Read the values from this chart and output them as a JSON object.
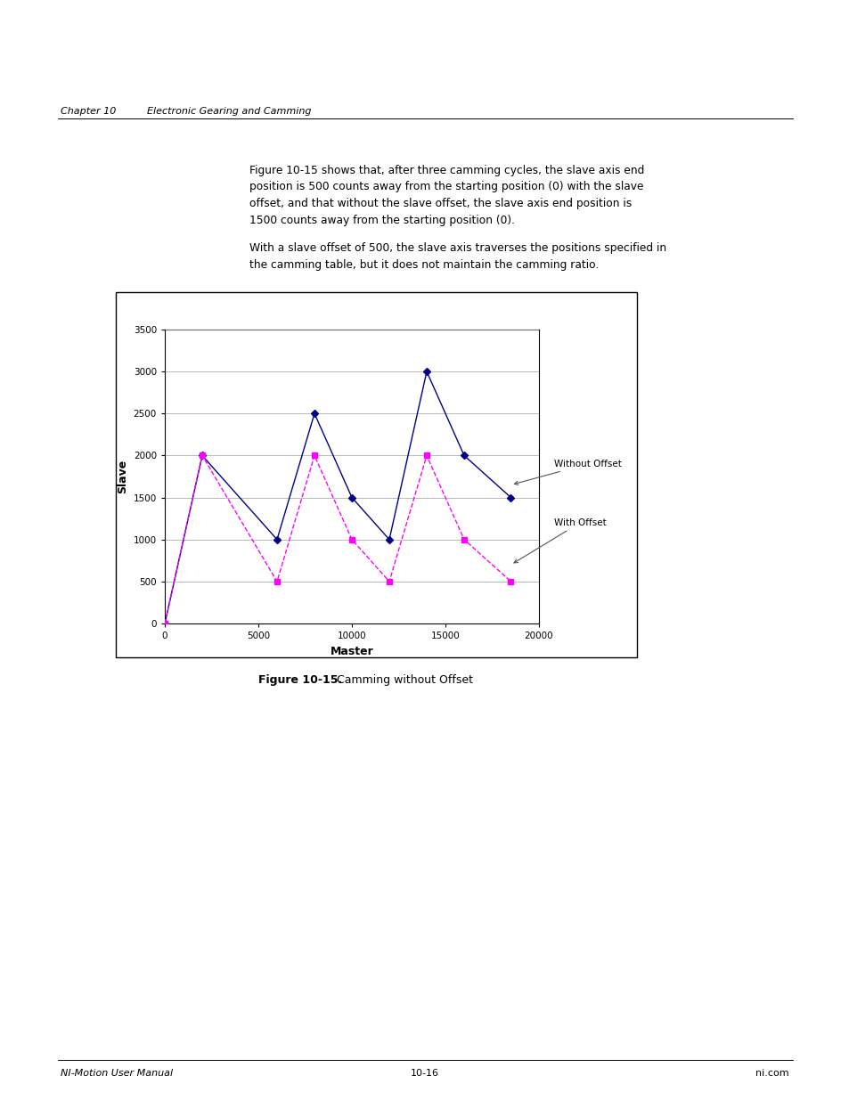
{
  "without_offset_x": [
    0,
    2000,
    6000,
    8000,
    10000,
    12000,
    14000,
    16000,
    18500
  ],
  "without_offset_y": [
    0,
    2000,
    1000,
    2500,
    1500,
    1000,
    3000,
    2000,
    1500
  ],
  "with_offset_x": [
    0,
    2000,
    6000,
    8000,
    10000,
    12000,
    14000,
    16000,
    18500
  ],
  "with_offset_y": [
    0,
    2000,
    500,
    2000,
    1000,
    500,
    2000,
    1000,
    500
  ],
  "without_offset_color": "#00008B",
  "with_offset_color": "#FF00FF",
  "xlabel": "Master",
  "ylabel": "Slave",
  "xlabel_fontsize": 9,
  "ylabel_fontsize": 9,
  "xlabel_fontweight": "bold",
  "ylabel_fontweight": "bold",
  "xlim": [
    0,
    20000
  ],
  "ylim": [
    0,
    3500
  ],
  "xticks": [
    0,
    5000,
    10000,
    15000,
    20000
  ],
  "yticks": [
    0,
    500,
    1000,
    1500,
    2000,
    2500,
    3000,
    3500
  ],
  "figure_caption_bold": "Figure 10-15.",
  "figure_caption_normal": "  Camming without Offset",
  "annotation_without_offset": "Without Offset",
  "annotation_with_offset": "With Offset",
  "page_header_left": "Chapter 10",
  "page_header_right": "Electronic Gearing and Camming",
  "page_footer_left": "NI-Motion User Manual",
  "page_footer_center": "10-16",
  "page_footer_right": "ni.com",
  "bg_color": "#FFFFFF",
  "plot_bg_color": "#FFFFFF",
  "border_color": "#000000",
  "grid_color": "#A0A0A0",
  "outer_box_color": "#000000",
  "body_text_1": "Figure 10-15 shows that, after three camming cycles, the slave axis end\nposition is 500 counts away from the starting position (0) with the slave\noffset, and that without the slave offset, the slave axis end position is\n1500 counts away from the starting position (0).",
  "body_text_2": "With a slave offset of 500, the slave axis traverses the positions specified in\nthe camming table, but it does not maintain the camming ratio."
}
